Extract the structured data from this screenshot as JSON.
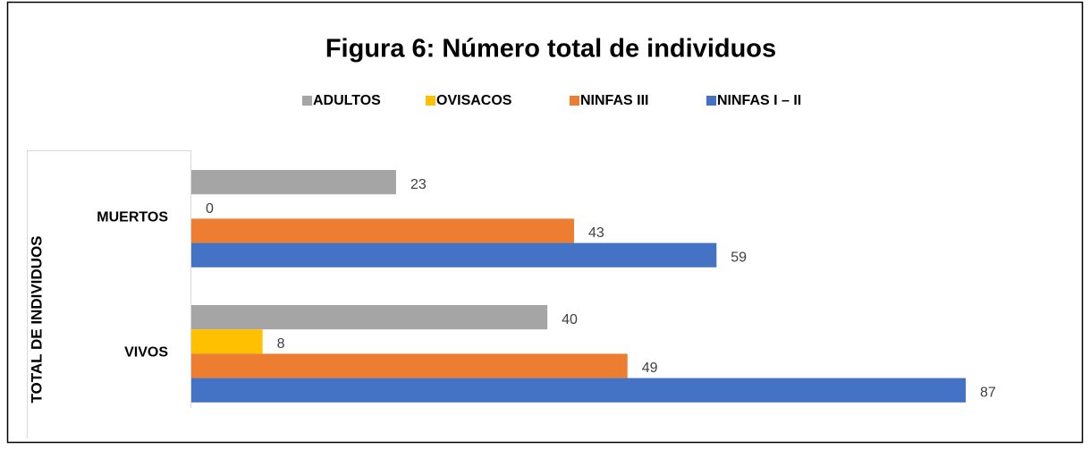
{
  "chart_data": {
    "type": "hbar",
    "title": "Figura 6: Número total de individuos",
    "y_label": "TOTAL DE INDIVIDUOS",
    "categories": [
      "MUERTOS",
      "VIVOS"
    ],
    "series": [
      {
        "name": "ADULTOS",
        "color": "#a5a5a5",
        "values": [
          23,
          40
        ]
      },
      {
        "name": "OVISACOS",
        "color": "#ffc000",
        "values": [
          0,
          8
        ]
      },
      {
        "name": "NINFAS III",
        "color": "#ed7d31",
        "values": [
          43,
          49
        ]
      },
      {
        "name": "NINFAS I – II",
        "color": "#4472c4",
        "values": [
          59,
          87
        ]
      }
    ],
    "legend": "top"
  }
}
